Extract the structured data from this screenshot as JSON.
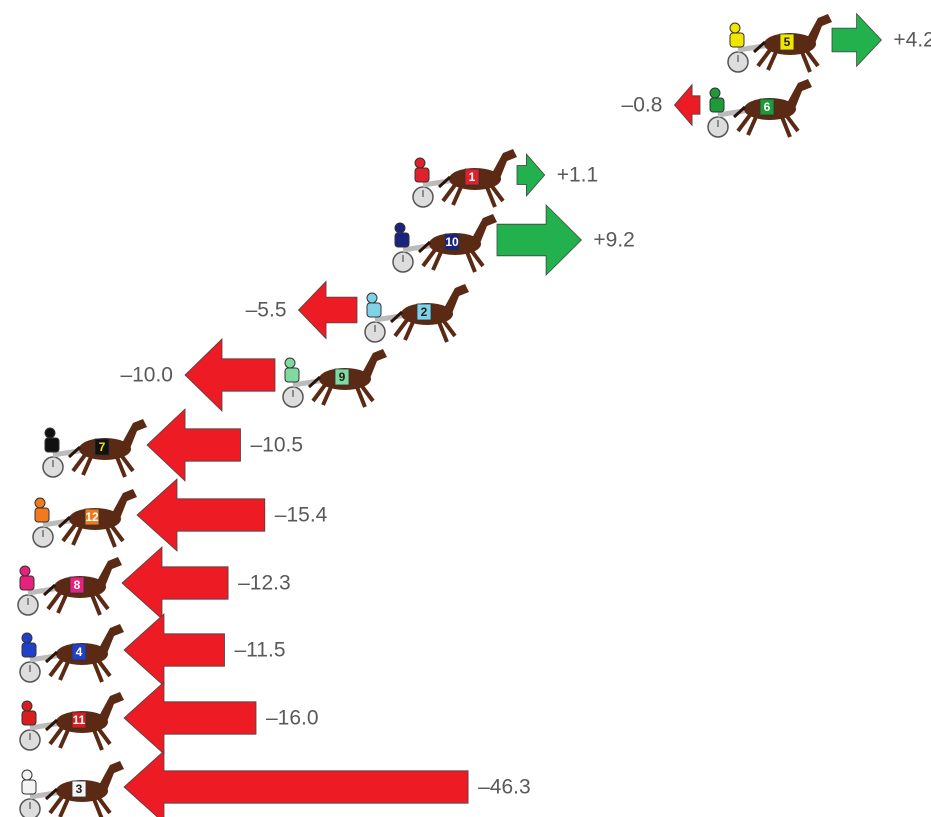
{
  "chart_data": {
    "type": "arrow",
    "categories": [
      "5",
      "6",
      "1",
      "10",
      "2",
      "9",
      "7",
      "12",
      "8",
      "4",
      "11",
      "3"
    ],
    "colors": [
      "#f2e600",
      "#1f9a3a",
      "#e0202a",
      "#1a237e",
      "#7fd3e8",
      "#7fd9a0",
      "#111111",
      "#f07a1e",
      "#e8207e",
      "#2040c8",
      "#d81e1e",
      "#f4f4f4"
    ],
    "values": [
      4.2,
      -0.8,
      1.1,
      9.2,
      -5.5,
      -10.0,
      -10.5,
      -15.4,
      -12.3,
      -11.5,
      -16.0,
      -46.3
    ],
    "value_labels": [
      "+4.2",
      "–0.8",
      "+1.1",
      "+9.2",
      "–5.5",
      "–10.0",
      "–10.5",
      "–15.4",
      "–12.3",
      "–11.5",
      "–16.0",
      "–46.3"
    ],
    "positive_color": "#22b14c",
    "negative_color": "#ed1c24"
  }
}
